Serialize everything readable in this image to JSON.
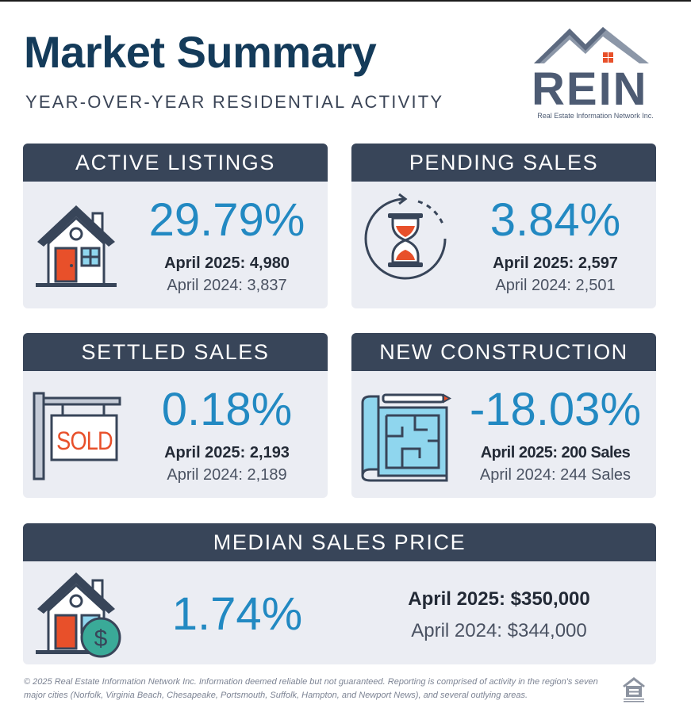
{
  "header": {
    "title": "Market Summary",
    "subtitle": "YEAR-OVER-YEAR RESIDENTIAL ACTIVITY"
  },
  "logo": {
    "text": "REIN",
    "tagline": "Real Estate Information Network Inc."
  },
  "cards": {
    "active": {
      "title": "ACTIVE LISTINGS",
      "percent": "29.79%",
      "current": "April 2025: 4,980",
      "previous": "April 2024: 3,837",
      "icon": "house-icon"
    },
    "pending": {
      "title": "PENDING SALES",
      "percent": "3.84%",
      "current": "April 2025: 2,597",
      "previous": "April 2024: 2,501",
      "icon": "hourglass-icon"
    },
    "settled": {
      "title": "SETTLED SALES",
      "percent": "0.18%",
      "current": "April 2025: 2,193",
      "previous": "April 2024: 2,189",
      "icon": "sold-sign-icon",
      "sign_text": "SOLD"
    },
    "construction": {
      "title": "NEW CONSTRUCTION",
      "percent": "-18.03%",
      "current": "April 2025: 200 Sales",
      "previous": "April 2024: 244 Sales",
      "icon": "blueprint-icon"
    },
    "median": {
      "title": "MEDIAN SALES PRICE",
      "percent": "1.74%",
      "current": "April 2025: $350,000",
      "previous": "April 2024: $344,000",
      "icon": "house-dollar-icon"
    }
  },
  "footer": {
    "text": "© 2025 Real Estate Information Network Inc. Information deemed reliable but not guaranteed. Reporting is comprised of activity in the region's seven major cities (Norfolk, Virginia Beach, Chesapeake, Portsmouth, Suffolk, Hampton, and Newport News), and several outlying areas.",
    "icon": "equal-housing-opportunity-icon"
  },
  "colors": {
    "title": "#143b5a",
    "card_header": "#384559",
    "card_body": "#ebedf3",
    "percent": "#2289c2",
    "accent": "#e8502a",
    "teal": "#3aaa98"
  }
}
